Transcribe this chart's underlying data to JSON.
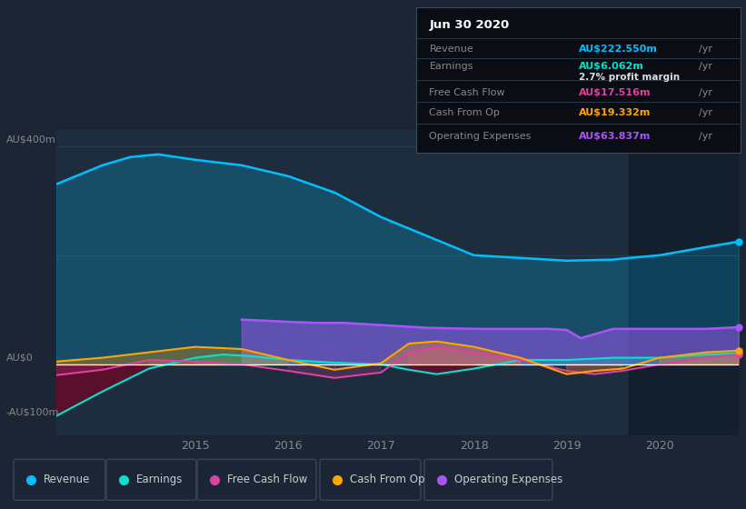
{
  "bg_color": "#1c2535",
  "plot_bg_color": "#1e2d3d",
  "grid_color": "#2a3f55",
  "zero_line_color": "#ffffff",
  "ylabel_400": "AU$400m",
  "ylabel_0": "AU$0",
  "ylabel_neg100": "-AU$100m",
  "x_ticks": [
    2015,
    2016,
    2017,
    2018,
    2019,
    2020
  ],
  "x_min": 2013.5,
  "x_max": 2020.85,
  "y_min": -130,
  "y_max": 430,
  "highlight_x_start": 2019.67,
  "highlight_x_end": 2020.85,
  "revenue_color": "#00bfff",
  "earnings_color": "#00e5cc",
  "fcf_color": "#e040a0",
  "cashfromop_color": "#ffa500",
  "opex_color": "#a855f7",
  "info_box": {
    "title": "Jun 30 2020",
    "revenue_label": "Revenue",
    "revenue_value": "AU$222.550m",
    "earnings_label": "Earnings",
    "earnings_value": "AU$6.062m",
    "profit_margin": "2.7% profit margin",
    "fcf_label": "Free Cash Flow",
    "fcf_value": "AU$17.516m",
    "cashop_label": "Cash From Op",
    "cashop_value": "AU$19.332m",
    "opex_label": "Operating Expenses",
    "opex_value": "AU$63.837m"
  },
  "legend": [
    {
      "label": "Revenue",
      "color": "#00bfff"
    },
    {
      "label": "Earnings",
      "color": "#00e5cc"
    },
    {
      "label": "Free Cash Flow",
      "color": "#e040a0"
    },
    {
      "label": "Cash From Op",
      "color": "#ffa500"
    },
    {
      "label": "Operating Expenses",
      "color": "#a855f7"
    }
  ],
  "x_revenue": [
    2013.5,
    2014.0,
    2014.3,
    2014.6,
    2015.0,
    2015.5,
    2016.0,
    2016.5,
    2017.0,
    2017.5,
    2018.0,
    2018.5,
    2019.0,
    2019.5,
    2019.67,
    2020.0,
    2020.5,
    2020.85
  ],
  "y_revenue": [
    330,
    365,
    380,
    385,
    375,
    365,
    345,
    315,
    270,
    235,
    200,
    195,
    190,
    192,
    195,
    200,
    215,
    225
  ],
  "x_earnings": [
    2013.5,
    2014.0,
    2014.5,
    2015.0,
    2015.3,
    2015.6,
    2016.0,
    2016.5,
    2017.0,
    2017.3,
    2017.6,
    2018.0,
    2018.5,
    2019.0,
    2019.5,
    2020.0,
    2020.5,
    2020.85
  ],
  "y_earnings": [
    -95,
    -50,
    -8,
    12,
    18,
    15,
    8,
    3,
    0,
    -10,
    -18,
    -8,
    8,
    8,
    12,
    12,
    18,
    20
  ],
  "x_fcf": [
    2013.5,
    2014.0,
    2014.5,
    2015.0,
    2015.5,
    2016.0,
    2016.5,
    2017.0,
    2017.3,
    2017.6,
    2018.0,
    2018.5,
    2019.0,
    2019.3,
    2019.6,
    2020.0,
    2020.5,
    2020.85
  ],
  "y_fcf": [
    -20,
    -10,
    8,
    5,
    0,
    -12,
    -25,
    -15,
    22,
    32,
    22,
    8,
    -12,
    -18,
    -12,
    0,
    12,
    18
  ],
  "x_cashop": [
    2013.5,
    2014.0,
    2014.5,
    2015.0,
    2015.5,
    2016.0,
    2016.5,
    2017.0,
    2017.3,
    2017.6,
    2018.0,
    2018.5,
    2019.0,
    2019.3,
    2019.6,
    2020.0,
    2020.5,
    2020.85
  ],
  "y_cashop": [
    5,
    12,
    22,
    32,
    28,
    8,
    -10,
    2,
    38,
    42,
    32,
    12,
    -18,
    -12,
    -8,
    12,
    22,
    25
  ],
  "x_opex": [
    2015.5,
    2016.0,
    2016.3,
    2016.6,
    2017.0,
    2017.5,
    2018.0,
    2018.5,
    2018.8,
    2019.0,
    2019.15,
    2019.5,
    2020.0,
    2020.5,
    2020.85
  ],
  "y_opex": [
    82,
    78,
    76,
    76,
    72,
    67,
    65,
    65,
    65,
    63,
    48,
    65,
    65,
    65,
    68
  ]
}
